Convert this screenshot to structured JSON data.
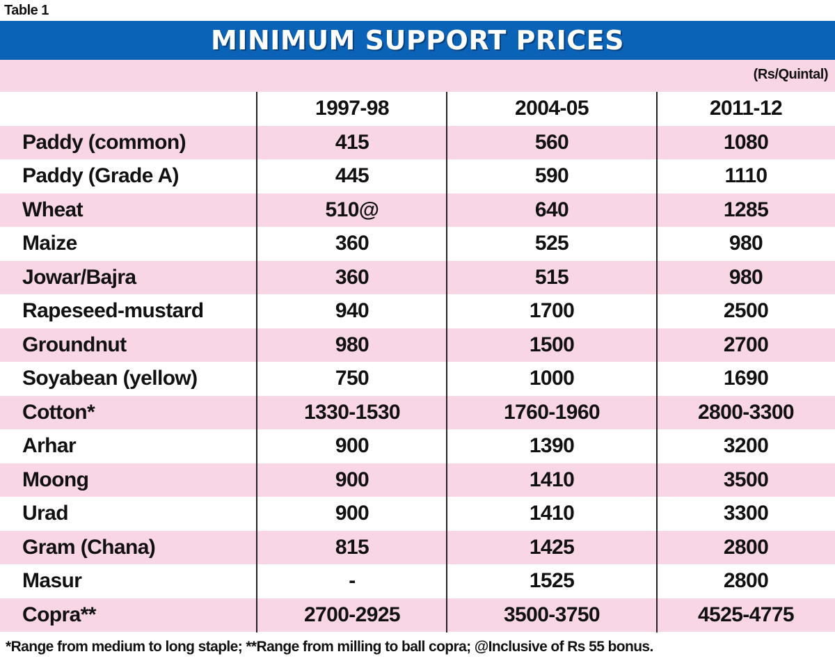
{
  "table_label": "Table 1",
  "title": "MINIMUM SUPPORT PRICES",
  "unit": "(Rs/Quintal)",
  "columns": [
    "1997-98",
    "2004-05",
    "2011-12"
  ],
  "rows": [
    {
      "name": "Paddy (common)",
      "values": [
        "415",
        "560",
        "1080"
      ]
    },
    {
      "name": "Paddy (Grade A)",
      "values": [
        "445",
        "590",
        "1110"
      ]
    },
    {
      "name": "Wheat",
      "values": [
        "510@",
        "640",
        "1285"
      ]
    },
    {
      "name": "Maize",
      "values": [
        "360",
        "525",
        "980"
      ]
    },
    {
      "name": "Jowar/Bajra",
      "values": [
        "360",
        "515",
        "980"
      ]
    },
    {
      "name": "Rapeseed-mustard",
      "values": [
        "940",
        "1700",
        "2500"
      ]
    },
    {
      "name": "Groundnut",
      "values": [
        "980",
        "1500",
        "2700"
      ]
    },
    {
      "name": "Soyabean (yellow)",
      "values": [
        "750",
        "1000",
        "1690"
      ]
    },
    {
      "name": "Cotton*",
      "values": [
        "1330-1530",
        "1760-1960",
        "2800-3300"
      ]
    },
    {
      "name": "Arhar",
      "values": [
        "900",
        "1390",
        "3200"
      ]
    },
    {
      "name": "Moong",
      "values": [
        "900",
        "1410",
        "3500"
      ]
    },
    {
      "name": "Urad",
      "values": [
        "900",
        "1410",
        "3300"
      ]
    },
    {
      "name": "Gram (Chana)",
      "values": [
        "815",
        "1425",
        "2800"
      ]
    },
    {
      "name": "Masur",
      "values": [
        "-",
        "1525",
        "2800"
      ]
    },
    {
      "name": "Copra**",
      "values": [
        "2700-2925",
        "3500-3750",
        "4525-4775"
      ]
    }
  ],
  "footnote": "*Range from medium to long staple; **Range from milling to ball copra; @Inclusive of Rs 55 bonus.",
  "colors": {
    "title_bg": "#0a63b7",
    "title_text": "#ffffff",
    "stripe_pink": "#f9d6e6",
    "stripe_white": "#ffffff",
    "text": "#111111"
  }
}
